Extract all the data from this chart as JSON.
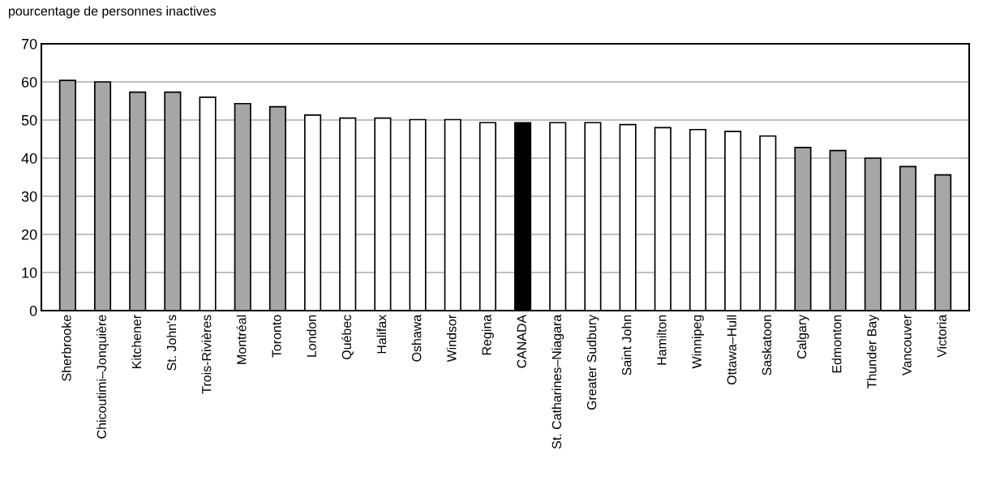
{
  "chart_data": {
    "type": "bar",
    "subtitle": "pourcentage de personnes inactives",
    "categories": [
      "Sherbrooke",
      "Chicoutimi–Jonquière",
      "Kitchener",
      "St. John's",
      "Trois-Rivières",
      "Montréal",
      "Toronto",
      "London",
      "Québec",
      "Halifax",
      "Oshawa",
      "Windsor",
      "Regina",
      "CANADA",
      "St. Catharines–Niagara",
      "Greater Sudbury",
      "Saint John",
      "Hamilton",
      "Winnipeg",
      "Ottawa–Hull",
      "Saskatoon",
      "Calgary",
      "Edmonton",
      "Thunder Bay",
      "Vancouver",
      "Victoria"
    ],
    "values": [
      60.4,
      60.0,
      57.3,
      57.3,
      56.0,
      54.3,
      53.5,
      51.3,
      50.5,
      50.5,
      50.1,
      50.1,
      49.3,
      49.3,
      49.3,
      49.3,
      48.8,
      48.0,
      47.5,
      47.0,
      45.8,
      42.8,
      42.0,
      40.0,
      37.8,
      35.6
    ],
    "colors": [
      "#a6a6a6",
      "#a6a6a6",
      "#a6a6a6",
      "#a6a6a6",
      "#ffffff",
      "#a6a6a6",
      "#a6a6a6",
      "#ffffff",
      "#ffffff",
      "#ffffff",
      "#ffffff",
      "#ffffff",
      "#ffffff",
      "#000000",
      "#ffffff",
      "#ffffff",
      "#ffffff",
      "#ffffff",
      "#ffffff",
      "#ffffff",
      "#ffffff",
      "#a6a6a6",
      "#a6a6a6",
      "#a6a6a6",
      "#a6a6a6",
      "#a6a6a6"
    ],
    "ylim": [
      0,
      70
    ],
    "yticks": [
      0,
      10,
      20,
      30,
      40,
      50,
      60,
      70
    ],
    "grid": "y",
    "legend": false
  }
}
